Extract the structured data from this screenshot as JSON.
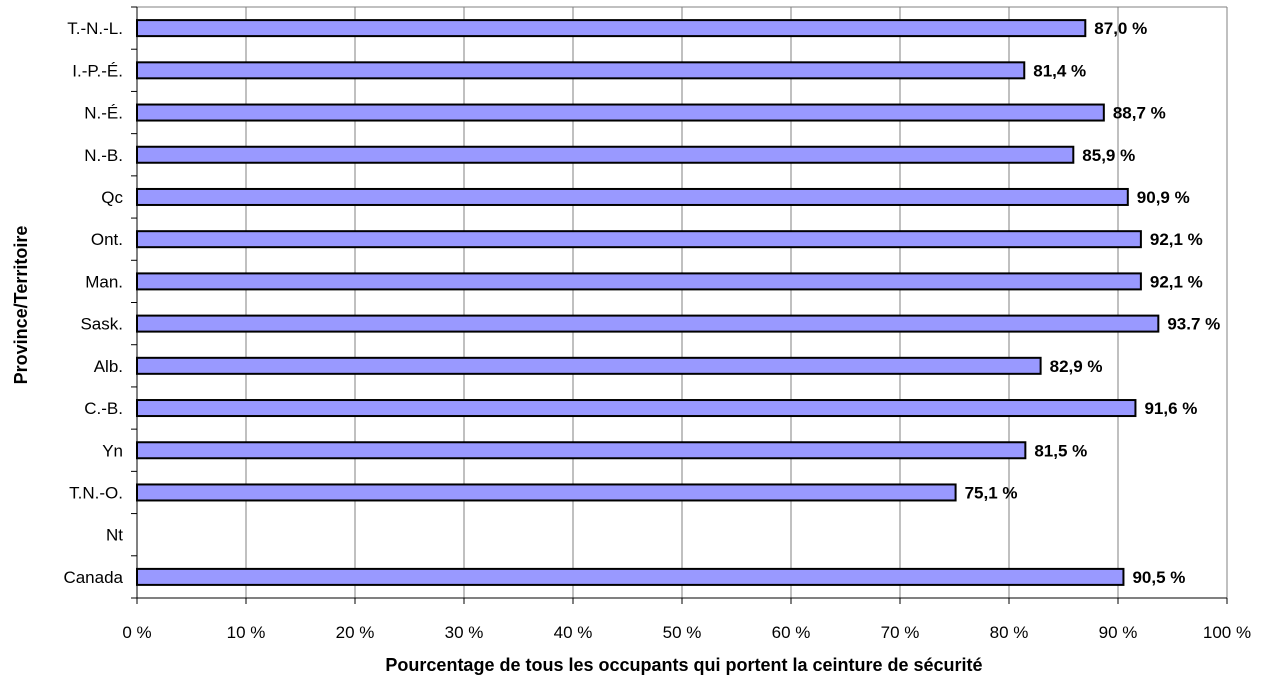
{
  "chart_data": {
    "type": "bar",
    "orientation": "horizontal",
    "categories": [
      "T.-N.-L.",
      "I.-P.-É.",
      "N.-É.",
      "N.-B.",
      "Qc",
      "Ont.",
      "Man.",
      "Sask.",
      "Alb.",
      "C.-B.",
      "Yn",
      "T.N.-O.",
      "Nt",
      "Canada"
    ],
    "values": [
      87.0,
      81.4,
      88.7,
      85.9,
      90.9,
      92.1,
      92.1,
      93.7,
      82.9,
      91.6,
      81.5,
      75.1,
      null,
      90.5
    ],
    "data_labels": [
      "87,0 %",
      "81,4 %",
      "88,7 %",
      "85,9 %",
      "90,9 %",
      "92,1 %",
      "92,1 %",
      "93.7 %",
      "82,9 %",
      "91,6 %",
      "81,5 %",
      "75,1 %",
      "",
      "90,5 %"
    ],
    "x_ticks": [
      0,
      10,
      20,
      30,
      40,
      50,
      60,
      70,
      80,
      90,
      100
    ],
    "x_tick_labels": [
      "0 %",
      "10 %",
      "20 %",
      "30 %",
      "40 %",
      "50 %",
      "60 %",
      "70 %",
      "80 %",
      "90 %",
      "100 %"
    ],
    "xlim": [
      0,
      100
    ],
    "xlabel": "Pourcentage de tous les occupants qui portent la ceinture de sécurité",
    "ylabel": "Province/Territoire",
    "title": "",
    "grid": "vertical",
    "bar_color": "#9999ff",
    "bar_edge_color": "#000000",
    "gridline_color": "#808080"
  }
}
